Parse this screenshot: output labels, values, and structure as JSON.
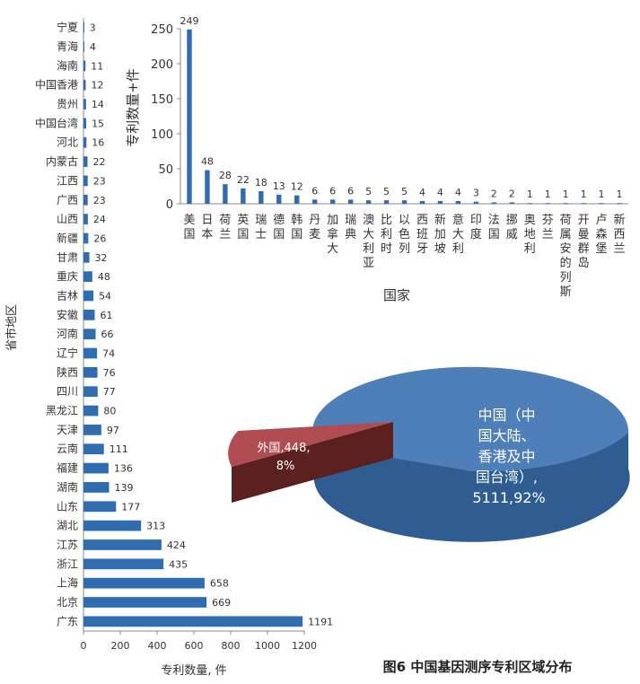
{
  "chart_data": [
    {
      "type": "bar",
      "orientation": "horizontal",
      "categories": [
        "宁夏",
        "青海",
        "海南",
        "中国香港",
        "贵州",
        "中国台湾",
        "河北",
        "内蒙古",
        "江西",
        "广西",
        "山西",
        "新疆",
        "甘肃",
        "重庆",
        "吉林",
        "安徽",
        "河南",
        "辽宁",
        "陕西",
        "四川",
        "黑龙江",
        "天津",
        "云南",
        "福建",
        "湖南",
        "山东",
        "湖北",
        "江苏",
        "浙江",
        "上海",
        "北京",
        "广东"
      ],
      "values": [
        3,
        4,
        11,
        12,
        14,
        15,
        16,
        22,
        23,
        23,
        24,
        26,
        32,
        48,
        54,
        61,
        66,
        74,
        76,
        77,
        80,
        97,
        111,
        136,
        139,
        177,
        313,
        424,
        435,
        658,
        669,
        1191
      ],
      "xlabel": "专利数量, 件",
      "ylabel": "省市地区",
      "xlim": [
        0,
        1200
      ],
      "xticks": [
        "0",
        "200",
        "400",
        "600",
        "800",
        "1000",
        "1200"
      ],
      "color": "#2f6db0"
    },
    {
      "type": "bar",
      "categories": [
        "美国",
        "日本",
        "荷兰",
        "英国",
        "瑞士",
        "德国",
        "韩国",
        "丹麦",
        "加拿大",
        "瑞典",
        "澳大利亚",
        "比利时",
        "以色列",
        "西班牙",
        "新加坡",
        "意大利",
        "印度",
        "法国",
        "挪威",
        "奥地利",
        "芬兰",
        "荷属安的列斯",
        "开曼群岛",
        "卢森堡",
        "新西兰"
      ],
      "values": [
        249,
        48,
        28,
        22,
        18,
        13,
        12,
        6,
        6,
        6,
        5,
        5,
        5,
        4,
        4,
        4,
        3,
        2,
        2,
        1,
        1,
        1,
        1,
        1,
        1
      ],
      "xlabel": "国家",
      "ylabel": "专利数量+件",
      "ylim": [
        0,
        250
      ],
      "yticks": [
        "0",
        "50",
        "100",
        "150",
        "200",
        "250"
      ],
      "color": "#2f6db0"
    },
    {
      "type": "pie",
      "slices": [
        {
          "label": "中国（中国大陆、香港及中国台湾）",
          "value": 5111,
          "percent": 92,
          "color": "#4f7fb8"
        },
        {
          "label": "外国",
          "value": 448,
          "percent": 8,
          "color": "#b14d52"
        }
      ],
      "labels_text": {
        "china_lines": [
          "中国（中",
          "国大陆、",
          "香港及中",
          "国台湾）,",
          "5111,92%"
        ],
        "foreign_lines": [
          "外国,448,",
          "8%"
        ]
      }
    }
  ],
  "caption": "图6  中国基因测序专利区域分布"
}
